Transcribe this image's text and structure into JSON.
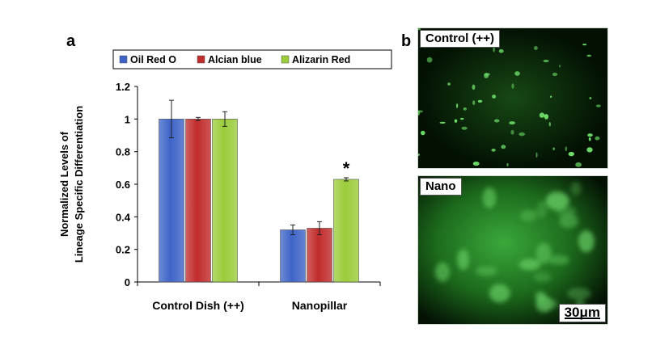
{
  "panels": {
    "a": "a",
    "b": "b"
  },
  "chart_data": {
    "type": "bar",
    "categories": [
      "Control Dish (++)",
      "Nanopillar"
    ],
    "series": [
      {
        "name": "Oil Red O",
        "values": [
          1.0,
          0.32
        ],
        "errors": [
          0.115,
          0.03
        ],
        "color": "#3e64c8"
      },
      {
        "name": "Alcian blue",
        "values": [
          1.0,
          0.33
        ],
        "errors": [
          0.01,
          0.04
        ],
        "color": "#c12b2b"
      },
      {
        "name": "Alizarin Red",
        "values": [
          1.0,
          0.63
        ],
        "errors": [
          0.045,
          0.01
        ],
        "color": "#9acc3a"
      }
    ],
    "ylabel": "Normalized Levels of Lineage Specific Differentiation",
    "ylabel_lines": [
      "Normalized Levels of",
      "Lineage Specific Differentiation"
    ],
    "xlabel": "",
    "ylim": [
      0,
      1.2
    ],
    "yticks": [
      "0",
      "0.2",
      "0.4",
      "0.6",
      "0.8",
      "1",
      "1.2"
    ],
    "annotations": [
      {
        "text": "*",
        "category": "Nanopillar",
        "series": "Alizarin Red"
      }
    ],
    "legend_position": "top",
    "grid": false
  },
  "micrographs": {
    "control": {
      "label": "Control (++)"
    },
    "nano": {
      "label": "Nano",
      "scale_bar": "30μm"
    }
  }
}
